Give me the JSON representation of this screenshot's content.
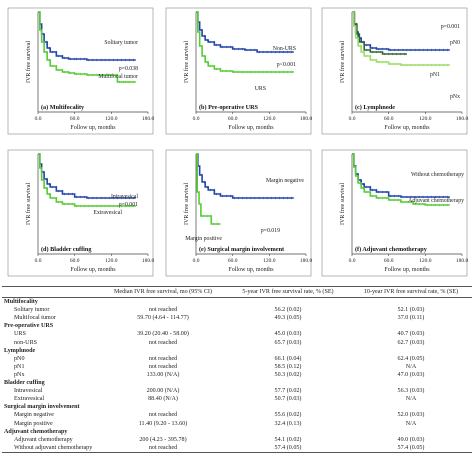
{
  "colors": {
    "blue": "#2244aa",
    "green": "#55cc33",
    "lightgreen": "#99dd66",
    "darkgreen": "#336633",
    "axis": "#444444"
  },
  "chart_data": [
    {
      "type": "line",
      "panel_label": "(a) Multifocality",
      "xlabel": "Follow up, months",
      "ylabel": "IVR free survival",
      "xlim": [
        0,
        180
      ],
      "ylim": [
        0,
        1
      ],
      "x_ticks": [
        "0.0",
        "60.0",
        "120.0",
        "180.0"
      ],
      "grid": false,
      "series": [
        {
          "name": "Solitary tumor",
          "color": "#2244aa",
          "x": [
            0,
            3,
            6,
            10,
            15,
            20,
            30,
            40,
            50,
            60,
            80,
            100,
            120,
            140,
            160
          ],
          "y": [
            1.0,
            0.88,
            0.78,
            0.7,
            0.64,
            0.6,
            0.56,
            0.54,
            0.53,
            0.53,
            0.52,
            0.52,
            0.52,
            0.52,
            0.52
          ]
        },
        {
          "name": "Multifocal tumor",
          "color": "#55cc33",
          "x": [
            0,
            3,
            6,
            10,
            15,
            20,
            30,
            40,
            50,
            60,
            80,
            100,
            120,
            130,
            140,
            160
          ],
          "y": [
            1.0,
            0.82,
            0.7,
            0.6,
            0.52,
            0.46,
            0.42,
            0.4,
            0.39,
            0.38,
            0.37,
            0.37,
            0.37,
            0.3,
            0.3,
            0.3
          ]
        }
      ],
      "annotations": [
        "p=0.038"
      ]
    },
    {
      "type": "line",
      "panel_label": "(b) Pre-operative URS",
      "xlabel": "Follow up, months",
      "ylabel": "IVR free survival",
      "xlim": [
        0,
        180
      ],
      "ylim": [
        0,
        1
      ],
      "x_ticks": [
        "0.0",
        "60.0",
        "120.0",
        "180.0"
      ],
      "grid": false,
      "series": [
        {
          "name": "Non-URS",
          "color": "#2244aa",
          "x": [
            0,
            3,
            6,
            10,
            15,
            20,
            30,
            40,
            60,
            80,
            100,
            120,
            140,
            160
          ],
          "y": [
            1.0,
            0.9,
            0.82,
            0.76,
            0.72,
            0.7,
            0.67,
            0.65,
            0.63,
            0.62,
            0.6,
            0.6,
            0.6,
            0.6
          ]
        },
        {
          "name": "URS",
          "color": "#55cc33",
          "x": [
            0,
            3,
            6,
            10,
            15,
            20,
            30,
            40,
            60,
            80,
            100,
            120,
            140,
            160
          ],
          "y": [
            1.0,
            0.8,
            0.66,
            0.56,
            0.5,
            0.46,
            0.43,
            0.41,
            0.4,
            0.4,
            0.4,
            0.4,
            0.4,
            0.4
          ]
        }
      ],
      "annotations": [
        "p<0.001"
      ]
    },
    {
      "type": "line",
      "panel_label": "(c) Lymphnode",
      "xlabel": "Follow up, months",
      "ylabel": "IVR free survival",
      "xlim": [
        0,
        180
      ],
      "ylim": [
        0,
        1
      ],
      "x_ticks": [
        "0.0",
        "60.0",
        "120.0",
        "180.0"
      ],
      "grid": false,
      "series": [
        {
          "name": "pN0",
          "color": "#2244aa",
          "x": [
            0,
            3,
            6,
            10,
            15,
            20,
            30,
            40,
            60,
            80,
            100,
            120,
            140,
            160
          ],
          "y": [
            1.0,
            0.88,
            0.8,
            0.74,
            0.7,
            0.67,
            0.64,
            0.63,
            0.62,
            0.62,
            0.62,
            0.62,
            0.62,
            0.62
          ]
        },
        {
          "name": "pN1",
          "color": "#336633",
          "x": [
            0,
            4,
            8,
            12,
            20,
            30,
            50,
            70,
            90
          ],
          "y": [
            1.0,
            0.88,
            0.78,
            0.7,
            0.62,
            0.6,
            0.58,
            0.58,
            0.58
          ]
        },
        {
          "name": "pNx",
          "color": "#99dd66",
          "x": [
            0,
            3,
            6,
            10,
            15,
            20,
            30,
            40,
            60,
            80,
            100,
            120,
            140,
            160
          ],
          "y": [
            1.0,
            0.86,
            0.74,
            0.66,
            0.6,
            0.56,
            0.52,
            0.5,
            0.48,
            0.47,
            0.47,
            0.47,
            0.47,
            0.47
          ]
        }
      ],
      "annotations": [
        "p=0.001"
      ]
    },
    {
      "type": "line",
      "panel_label": "(d) Bladder cuffing",
      "xlabel": "Follow up, months",
      "ylabel": "IVR free survival",
      "xlim": [
        0,
        180
      ],
      "ylim": [
        0,
        1
      ],
      "x_ticks": [
        "0.0",
        "60.0",
        "120.0",
        "180.0"
      ],
      "grid": false,
      "series": [
        {
          "name": "Intravesical",
          "color": "#2244aa",
          "x": [
            0,
            3,
            6,
            10,
            15,
            20,
            30,
            40,
            60,
            80,
            100,
            120,
            140,
            160
          ],
          "y": [
            1.0,
            0.9,
            0.82,
            0.75,
            0.7,
            0.67,
            0.63,
            0.6,
            0.57,
            0.56,
            0.56,
            0.56,
            0.56,
            0.56
          ]
        },
        {
          "name": "Extravesical",
          "color": "#55cc33",
          "x": [
            0,
            3,
            6,
            10,
            15,
            20,
            30,
            40,
            60,
            80,
            100,
            120,
            140,
            160
          ],
          "y": [
            1.0,
            0.86,
            0.74,
            0.66,
            0.6,
            0.56,
            0.52,
            0.5,
            0.48,
            0.48,
            0.48,
            0.48,
            0.48,
            0.48
          ]
        }
      ],
      "annotations": [
        "p=0.001"
      ]
    },
    {
      "type": "line",
      "panel_label": "(e) Surgical margin involvement",
      "xlabel": "Follow up, months",
      "ylabel": "IVR free survival",
      "xlim": [
        0,
        180
      ],
      "ylim": [
        0,
        1
      ],
      "x_ticks": [
        "0.0",
        "60.0",
        "120.0",
        "180.0"
      ],
      "grid": false,
      "series": [
        {
          "name": "Margin negative",
          "color": "#2244aa",
          "x": [
            0,
            3,
            6,
            10,
            15,
            20,
            30,
            40,
            60,
            80,
            100,
            120,
            140,
            160
          ],
          "y": [
            1.0,
            0.88,
            0.79,
            0.72,
            0.67,
            0.64,
            0.6,
            0.58,
            0.56,
            0.56,
            0.56,
            0.56,
            0.56,
            0.56
          ]
        },
        {
          "name": "Margin positive",
          "color": "#55cc33",
          "x": [
            0,
            2,
            5,
            8,
            15,
            25,
            40
          ],
          "y": [
            1.0,
            0.62,
            0.5,
            0.38,
            0.38,
            0.3,
            0.3
          ]
        }
      ],
      "annotations": [
        "p=0.019"
      ]
    },
    {
      "type": "line",
      "panel_label": "(f) Adjuvant chemotherapy",
      "xlabel": "Follow up, months",
      "ylabel": "IVR free survival",
      "xlim": [
        0,
        180
      ],
      "ylim": [
        0,
        1
      ],
      "x_ticks": [
        "0.0",
        "60.0",
        "120.0",
        "180.0"
      ],
      "grid": false,
      "series": [
        {
          "name": "Without chemotherapy",
          "color": "#2244aa",
          "x": [
            0,
            3,
            6,
            10,
            15,
            20,
            30,
            40,
            60,
            80,
            100,
            120,
            140,
            160
          ],
          "y": [
            1.0,
            0.88,
            0.8,
            0.74,
            0.7,
            0.67,
            0.64,
            0.62,
            0.58,
            0.57,
            0.57,
            0.57,
            0.57,
            0.57
          ]
        },
        {
          "name": "Adjuvant chemotherapy",
          "color": "#55cc33",
          "x": [
            0,
            3,
            6,
            10,
            15,
            20,
            30,
            40,
            60,
            80,
            100,
            120,
            140,
            160
          ],
          "y": [
            1.0,
            0.87,
            0.78,
            0.71,
            0.66,
            0.62,
            0.58,
            0.56,
            0.54,
            0.52,
            0.5,
            0.49,
            0.49,
            0.49
          ]
        }
      ],
      "annotations": []
    }
  ],
  "table": {
    "columns": [
      "",
      "Median IVR free survival, mo (95% CI)",
      "5-year IVR free survival rate, % (SE)",
      "10-year IVR free survival rate, % (SE)"
    ],
    "rows": [
      {
        "section": true,
        "name": "Multifocality"
      },
      {
        "name": "Solitary tumor",
        "median": "not reached",
        "y5": "56.2 (0.02)",
        "y10": "52.1 (0.03)"
      },
      {
        "name": "Multifocal tumor",
        "median": "59.70 (4.64 - 114.77)",
        "y5": "49.3 (0.05)",
        "y10": "37.0 (0.11)"
      },
      {
        "section": true,
        "name": "Pre-operative URS"
      },
      {
        "name": "URS",
        "median": "39.20 (20.40 - 58.00)",
        "y5": "45.0 (0.03)",
        "y10": "40.7 (0.03)"
      },
      {
        "name": "non-URS",
        "median": "not reached",
        "y5": "65.7 (0.03)",
        "y10": "62.7 (0.03)"
      },
      {
        "section": true,
        "name": "Lymphnode"
      },
      {
        "name": "pN0",
        "median": "not reached",
        "y5": "66.1 (0.04)",
        "y10": "62.4 (0.05)"
      },
      {
        "name": "pN1",
        "median": "not reached",
        "y5": "58.5 (0.12)",
        "y10": "N/A"
      },
      {
        "name": "pNx",
        "median": "133.00 (N/A)",
        "y5": "50.3 (0.02)",
        "y10": "47.0 (0.03)"
      },
      {
        "section": true,
        "name": "Bladder cuffing"
      },
      {
        "name": "Intravesical",
        "median": "200.00 (N/A)",
        "y5": "57.7 (0.02)",
        "y10": "56.3 (0.03)"
      },
      {
        "name": "Extravesical",
        "median": "88.40 (N/A)",
        "y5": "50.7 (0.03)",
        "y10": "N/A"
      },
      {
        "section": true,
        "name": "Surgical margin involvement"
      },
      {
        "name": "Margin negative",
        "median": "not reached",
        "y5": "55.6 (0.02)",
        "y10": "52.0 (0.03)"
      },
      {
        "name": "Margin positive",
        "median": "11.40 (9.20 - 13.60)",
        "y5": "32.4 (0.13)",
        "y10": "N/A"
      },
      {
        "section": true,
        "name": "Adjuvant chemotherapy"
      },
      {
        "name": "Adjuvant chemotherapy",
        "median": "200 (4.23 - 395.78)",
        "y5": "54.1 (0.02)",
        "y10": "49.0 (0.03)"
      },
      {
        "name": "Without adjuvant chemotherapy",
        "median": "not reached",
        "y5": "57.4 (0.05)",
        "y10": "57.4 (0.05)"
      }
    ]
  }
}
